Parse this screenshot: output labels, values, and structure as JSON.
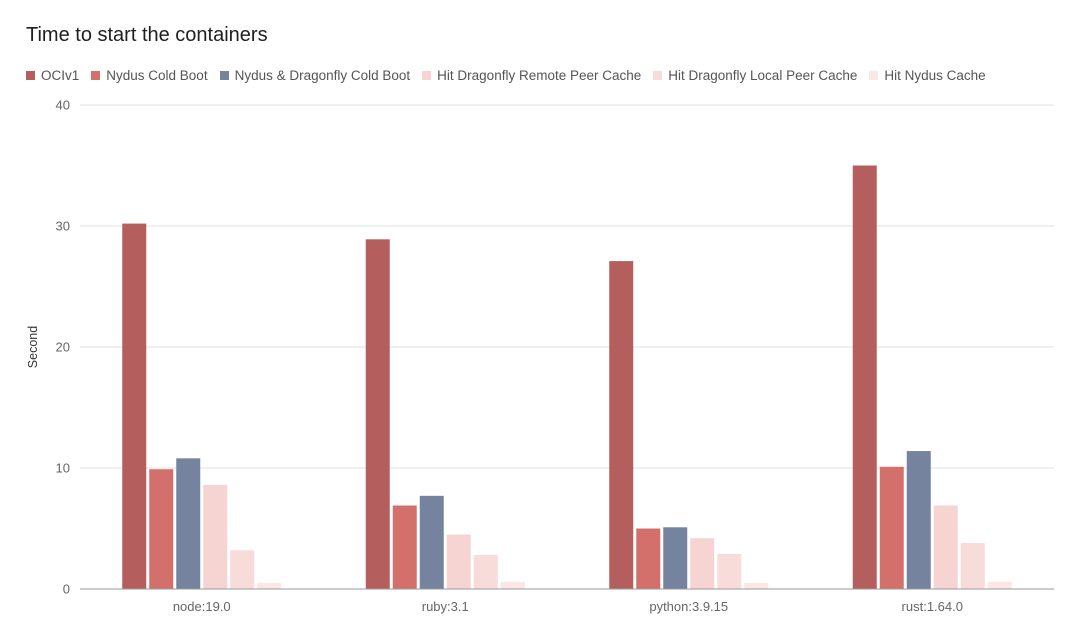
{
  "chart_data": {
    "type": "bar",
    "title": "Time to start the containers",
    "xlabel": "",
    "ylabel": "Second",
    "ylim": [
      0,
      40
    ],
    "yticks": [
      0,
      10,
      20,
      30,
      40
    ],
    "grid": true,
    "legend_position": "top-left",
    "categories": [
      "node:19.0",
      "ruby:3.1",
      "python:3.9.15",
      "rust:1.64.0"
    ],
    "series": [
      {
        "name": "OCIv1",
        "color": "#b45f5e",
        "values": [
          30.2,
          28.9,
          27.1,
          35.0
        ]
      },
      {
        "name": "Nydus Cold Boot",
        "color": "#d4706c",
        "values": [
          9.9,
          6.9,
          5.0,
          10.1
        ]
      },
      {
        "name": "Nydus & Dragonfly Cold Boot",
        "color": "#76839f",
        "values": [
          10.8,
          7.7,
          5.1,
          11.4
        ]
      },
      {
        "name": "Hit Dragonfly Remote Peer Cache",
        "color": "#f6d4d1",
        "values": [
          8.6,
          4.5,
          4.2,
          6.9
        ]
      },
      {
        "name": "Hit Dragonfly Local Peer Cache",
        "color": "#f8dcda",
        "values": [
          3.2,
          2.8,
          2.9,
          3.8
        ]
      },
      {
        "name": "Hit Nydus Cache",
        "color": "#fbe7e5",
        "values": [
          0.5,
          0.6,
          0.5,
          0.6
        ]
      }
    ]
  }
}
